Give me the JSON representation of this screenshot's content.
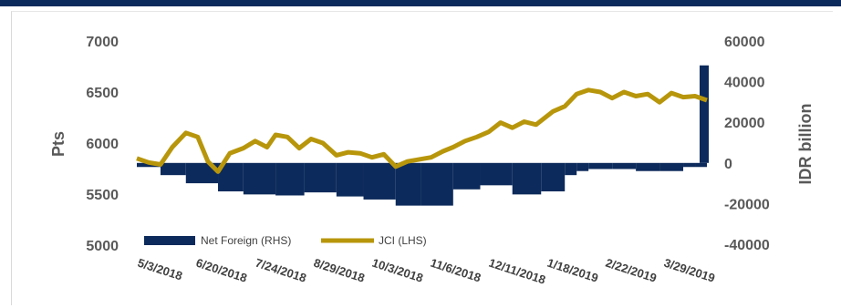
{
  "chart_data": {
    "type": "bar+line",
    "x_tick_labels": [
      "5/3/2018",
      "6/20/2018",
      "7/24/2018",
      "8/29/2018",
      "10/3/2018",
      "11/6/2018",
      "12/11/2018",
      "1/18/2019",
      "2/22/2019",
      "3/29/2019"
    ],
    "left_axis": {
      "label": "Pts",
      "ticks": [
        "5000",
        "5500",
        "6000",
        "6500",
        "7000"
      ],
      "range": [
        5000,
        7000
      ]
    },
    "right_axis": {
      "label": "IDR billion",
      "ticks": [
        "-40000",
        "-20000",
        "0",
        "20000",
        "40000",
        "60000"
      ],
      "range": [
        -40000,
        60000
      ]
    },
    "grid": false,
    "legend_position": "bottom-left",
    "colors": {
      "bars": "#0c2a5b",
      "line": "#b8960b",
      "top_bar": "#0c2a5b"
    },
    "series": [
      {
        "name": "Net Foreign (RHS)",
        "type": "bar",
        "axis": "right",
        "x": [
          "5/3/2018",
          "5/17/2018",
          "6/1/2018",
          "6/20/2018",
          "7/5/2018",
          "7/24/2018",
          "8/10/2018",
          "8/29/2018",
          "9/14/2018",
          "10/3/2018",
          "10/18/2018",
          "11/6/2018",
          "11/22/2018",
          "12/11/2018",
          "12/28/2018",
          "1/11/2019",
          "1/18/2019",
          "1/25/2019",
          "2/8/2019",
          "2/22/2019",
          "3/8/2019",
          "3/22/2019",
          "3/29/2019",
          "4/5/2019"
        ],
        "values": [
          -2000,
          -6000,
          -10000,
          -14000,
          -15500,
          -16000,
          -14500,
          -16500,
          -18000,
          -21000,
          -21000,
          -13000,
          -11000,
          -15500,
          -14000,
          -6000,
          -4000,
          -3000,
          -3000,
          -4000,
          -4000,
          -2000,
          -2000,
          48000
        ]
      },
      {
        "name": "JCI (LHS)",
        "type": "line",
        "axis": "left",
        "x": [
          "5/3/2018",
          "5/10/2018",
          "5/17/2018",
          "5/24/2018",
          "6/1/2018",
          "6/8/2018",
          "6/14/2018",
          "6/20/2018",
          "6/27/2018",
          "7/5/2018",
          "7/12/2018",
          "7/19/2018",
          "7/24/2018",
          "7/31/2018",
          "8/7/2018",
          "8/14/2018",
          "8/21/2018",
          "8/29/2018",
          "9/5/2018",
          "9/12/2018",
          "9/19/2018",
          "9/26/2018",
          "10/3/2018",
          "10/10/2018",
          "10/17/2018",
          "10/24/2018",
          "10/31/2018",
          "11/6/2018",
          "11/13/2018",
          "11/20/2018",
          "11/27/2018",
          "12/4/2018",
          "12/11/2018",
          "12/18/2018",
          "12/25/2018",
          "1/4/2019",
          "1/11/2019",
          "1/18/2019",
          "1/25/2019",
          "2/1/2019",
          "2/8/2019",
          "2/15/2019",
          "2/22/2019",
          "3/1/2019",
          "3/8/2019",
          "3/15/2019",
          "3/22/2019",
          "3/29/2019",
          "4/5/2019"
        ],
        "values": [
          5850,
          5810,
          5790,
          5960,
          6100,
          6060,
          5820,
          5720,
          5900,
          5950,
          6020,
          5960,
          6080,
          6060,
          5950,
          6040,
          6000,
          5880,
          5910,
          5900,
          5860,
          5890,
          5770,
          5820,
          5840,
          5860,
          5920,
          5960,
          6020,
          6060,
          6110,
          6200,
          6150,
          6210,
          6180,
          6310,
          6360,
          6480,
          6520,
          6500,
          6440,
          6500,
          6460,
          6480,
          6400,
          6490,
          6450,
          6460,
          6420
        ]
      }
    ]
  }
}
